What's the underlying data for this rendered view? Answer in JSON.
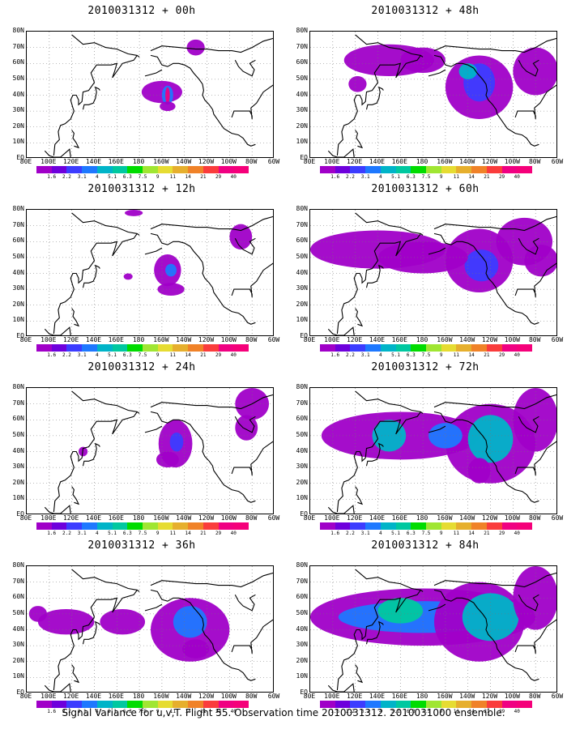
{
  "panels": [
    {
      "title": "2010031312 + 00h",
      "lead": "00h"
    },
    {
      "title": "2010031312 + 48h",
      "lead": "48h"
    },
    {
      "title": "2010031312 + 12h",
      "lead": "12h"
    },
    {
      "title": "2010031312 + 60h",
      "lead": "60h"
    },
    {
      "title": "2010031312 + 24h",
      "lead": "24h"
    },
    {
      "title": "2010031312 + 72h",
      "lead": "72h"
    },
    {
      "title": "2010031312 + 36h",
      "lead": "36h"
    },
    {
      "title": "2010031312 + 84h",
      "lead": "84h"
    }
  ],
  "y_ticks": [
    "80N",
    "70N",
    "60N",
    "50N",
    "40N",
    "30N",
    "20N",
    "10N",
    "EQ"
  ],
  "x_ticks": [
    "80E",
    "100E",
    "120E",
    "140E",
    "160E",
    "180",
    "160W",
    "140W",
    "120W",
    "100W",
    "80W",
    "60W"
  ],
  "colorbar": {
    "labels": [
      "1.6",
      "2.2",
      "3.1",
      "4",
      "5.1",
      "6.3",
      "7.5",
      "9",
      "11",
      "14",
      "21",
      "29",
      "40"
    ],
    "colors": [
      "#a000c8",
      "#6e00dc",
      "#3c3cff",
      "#1e78ff",
      "#00b4c8",
      "#00c8a0",
      "#00dc00",
      "#a0e632",
      "#e6dc32",
      "#e6af2d",
      "#f08228",
      "#fa3c3c",
      "#f00082"
    ]
  },
  "footer": "Signal Variance for u,v,T. Flight 55. Observation time 2010031312. 2010031000 ensemble."
}
